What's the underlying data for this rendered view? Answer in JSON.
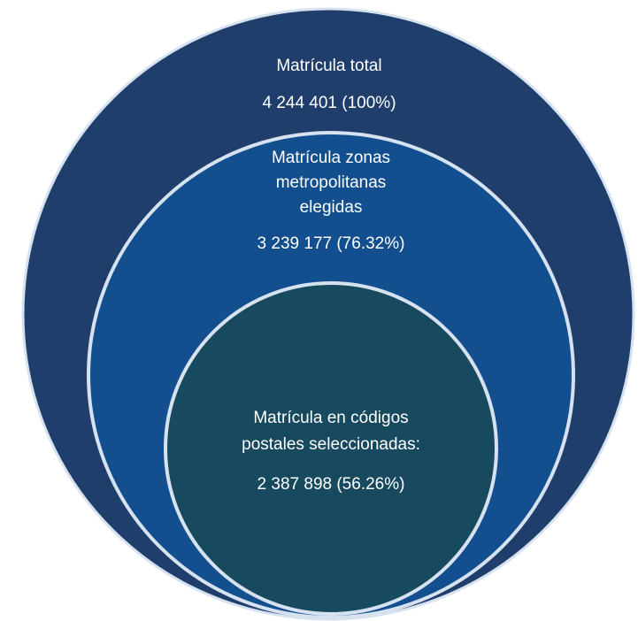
{
  "nodes": [
    {
      "label": [
        "Matrícula total"
      ],
      "value": "4 244 401 (100%)"
    },
    {
      "label": [
        "Matrícula zonas",
        "metropolitanas",
        "elegidas"
      ],
      "value": "3 239 177 (76.32%)"
    },
    {
      "label": [
        "Matrícula en códigos",
        "postales seleccionadas:"
      ],
      "value": "2 387 898 (56.26%)"
    }
  ]
}
